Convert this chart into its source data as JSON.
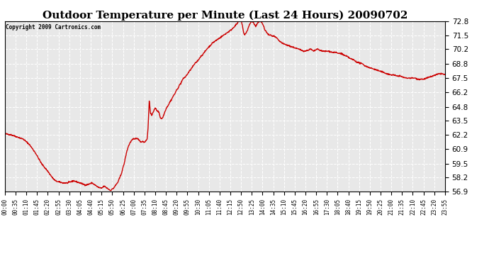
{
  "title": "Outdoor Temperature per Minute (Last 24 Hours) 20090702",
  "copyright_text": "Copyright 2009 Cartronics.com",
  "line_color": "#cc0000",
  "background_color": "#ffffff",
  "plot_bg_color": "#e8e8e8",
  "grid_color": "#ffffff",
  "ylim": [
    56.9,
    72.8
  ],
  "yticks": [
    56.9,
    58.2,
    59.5,
    60.9,
    62.2,
    63.5,
    64.8,
    66.2,
    67.5,
    68.8,
    70.2,
    71.5,
    72.8
  ],
  "xlabel_fontsize": 5.5,
  "ylabel_fontsize": 7.5,
  "title_fontsize": 11,
  "line_width": 1.0,
  "x_tick_labels": [
    "00:00",
    "00:35",
    "01:10",
    "01:45",
    "02:20",
    "02:55",
    "03:30",
    "04:05",
    "04:40",
    "05:15",
    "05:50",
    "06:25",
    "07:00",
    "07:35",
    "08:10",
    "08:45",
    "09:20",
    "09:55",
    "10:30",
    "11:05",
    "11:40",
    "12:15",
    "12:50",
    "13:25",
    "14:00",
    "14:35",
    "15:10",
    "15:45",
    "16:20",
    "16:55",
    "17:30",
    "18:05",
    "18:40",
    "19:15",
    "19:50",
    "20:25",
    "21:00",
    "21:35",
    "22:10",
    "22:45",
    "23:20",
    "23:55"
  ],
  "control_points": [
    [
      0,
      62.3
    ],
    [
      20,
      62.2
    ],
    [
      40,
      62.0
    ],
    [
      60,
      61.8
    ],
    [
      80,
      61.3
    ],
    [
      100,
      60.5
    ],
    [
      120,
      59.5
    ],
    [
      140,
      58.8
    ],
    [
      155,
      58.2
    ],
    [
      165,
      57.9
    ],
    [
      175,
      57.8
    ],
    [
      190,
      57.7
    ],
    [
      205,
      57.7
    ],
    [
      215,
      57.8
    ],
    [
      225,
      57.9
    ],
    [
      235,
      57.8
    ],
    [
      245,
      57.7
    ],
    [
      255,
      57.6
    ],
    [
      265,
      57.5
    ],
    [
      275,
      57.6
    ],
    [
      285,
      57.7
    ],
    [
      295,
      57.5
    ],
    [
      305,
      57.3
    ],
    [
      315,
      57.2
    ],
    [
      325,
      57.4
    ],
    [
      330,
      57.3
    ],
    [
      335,
      57.2
    ],
    [
      340,
      57.1
    ],
    [
      345,
      57.0
    ],
    [
      350,
      57.1
    ],
    [
      355,
      57.2
    ],
    [
      360,
      57.4
    ],
    [
      370,
      57.8
    ],
    [
      380,
      58.5
    ],
    [
      390,
      59.5
    ],
    [
      395,
      60.2
    ],
    [
      400,
      60.8
    ],
    [
      405,
      61.2
    ],
    [
      410,
      61.5
    ],
    [
      415,
      61.7
    ],
    [
      420,
      61.8
    ],
    [
      425,
      61.8
    ],
    [
      430,
      61.9
    ],
    [
      435,
      61.8
    ],
    [
      440,
      61.7
    ],
    [
      445,
      61.5
    ],
    [
      450,
      61.6
    ],
    [
      455,
      61.5
    ],
    [
      460,
      61.6
    ],
    [
      465,
      61.8
    ],
    [
      468,
      62.8
    ],
    [
      472,
      65.4
    ],
    [
      476,
      64.2
    ],
    [
      480,
      64.0
    ],
    [
      484,
      64.3
    ],
    [
      488,
      64.5
    ],
    [
      492,
      64.7
    ],
    [
      496,
      64.5
    ],
    [
      500,
      64.4
    ],
    [
      504,
      64.3
    ],
    [
      508,
      63.8
    ],
    [
      512,
      63.7
    ],
    [
      516,
      63.8
    ],
    [
      520,
      64.1
    ],
    [
      525,
      64.5
    ],
    [
      530,
      64.8
    ],
    [
      535,
      65.0
    ],
    [
      540,
      65.3
    ],
    [
      545,
      65.5
    ],
    [
      550,
      65.8
    ],
    [
      555,
      66.0
    ],
    [
      560,
      66.3
    ],
    [
      565,
      66.5
    ],
    [
      570,
      66.8
    ],
    [
      575,
      67.0
    ],
    [
      580,
      67.3
    ],
    [
      585,
      67.5
    ],
    [
      590,
      67.6
    ],
    [
      595,
      67.8
    ],
    [
      600,
      68.0
    ],
    [
      610,
      68.4
    ],
    [
      620,
      68.8
    ],
    [
      630,
      69.1
    ],
    [
      640,
      69.5
    ],
    [
      650,
      69.8
    ],
    [
      660,
      70.2
    ],
    [
      670,
      70.5
    ],
    [
      680,
      70.8
    ],
    [
      690,
      71.0
    ],
    [
      700,
      71.2
    ],
    [
      710,
      71.4
    ],
    [
      720,
      71.6
    ],
    [
      730,
      71.8
    ],
    [
      740,
      72.0
    ],
    [
      750,
      72.3
    ],
    [
      760,
      72.6
    ],
    [
      768,
      73.0
    ],
    [
      772,
      72.9
    ],
    [
      776,
      72.5
    ],
    [
      780,
      71.8
    ],
    [
      784,
      71.5
    ],
    [
      788,
      71.7
    ],
    [
      792,
      71.9
    ],
    [
      796,
      72.2
    ],
    [
      800,
      72.5
    ],
    [
      804,
      72.7
    ],
    [
      808,
      72.8
    ],
    [
      812,
      72.7
    ],
    [
      816,
      72.5
    ],
    [
      820,
      72.3
    ],
    [
      824,
      72.5
    ],
    [
      828,
      72.7
    ],
    [
      832,
      72.8
    ],
    [
      836,
      72.8
    ],
    [
      840,
      72.7
    ],
    [
      845,
      72.4
    ],
    [
      850,
      72.0
    ],
    [
      855,
      71.8
    ],
    [
      860,
      71.6
    ],
    [
      865,
      71.5
    ],
    [
      870,
      71.5
    ],
    [
      875,
      71.4
    ],
    [
      880,
      71.4
    ],
    [
      885,
      71.3
    ],
    [
      890,
      71.2
    ],
    [
      895,
      71.0
    ],
    [
      900,
      70.9
    ],
    [
      910,
      70.7
    ],
    [
      920,
      70.6
    ],
    [
      930,
      70.5
    ],
    [
      940,
      70.4
    ],
    [
      950,
      70.3
    ],
    [
      960,
      70.2
    ],
    [
      970,
      70.1
    ],
    [
      980,
      70.0
    ],
    [
      990,
      70.1
    ],
    [
      1000,
      70.2
    ],
    [
      1005,
      70.1
    ],
    [
      1010,
      70.0
    ],
    [
      1015,
      70.1
    ],
    [
      1020,
      70.2
    ],
    [
      1030,
      70.1
    ],
    [
      1040,
      70.0
    ],
    [
      1050,
      70.0
    ],
    [
      1060,
      70.0
    ],
    [
      1070,
      69.9
    ],
    [
      1080,
      69.9
    ],
    [
      1090,
      69.8
    ],
    [
      1100,
      69.8
    ],
    [
      1110,
      69.6
    ],
    [
      1120,
      69.5
    ],
    [
      1130,
      69.3
    ],
    [
      1140,
      69.2
    ],
    [
      1150,
      69.0
    ],
    [
      1160,
      68.9
    ],
    [
      1170,
      68.8
    ],
    [
      1180,
      68.6
    ],
    [
      1190,
      68.5
    ],
    [
      1200,
      68.4
    ],
    [
      1210,
      68.3
    ],
    [
      1220,
      68.2
    ],
    [
      1230,
      68.1
    ],
    [
      1240,
      68.0
    ],
    [
      1250,
      67.9
    ],
    [
      1260,
      67.8
    ],
    [
      1270,
      67.8
    ],
    [
      1280,
      67.7
    ],
    [
      1290,
      67.7
    ],
    [
      1300,
      67.6
    ],
    [
      1310,
      67.5
    ],
    [
      1320,
      67.5
    ],
    [
      1330,
      67.5
    ],
    [
      1340,
      67.5
    ],
    [
      1350,
      67.4
    ],
    [
      1360,
      67.4
    ],
    [
      1370,
      67.4
    ],
    [
      1380,
      67.5
    ],
    [
      1390,
      67.6
    ],
    [
      1400,
      67.7
    ],
    [
      1410,
      67.8
    ],
    [
      1420,
      67.9
    ],
    [
      1430,
      67.9
    ],
    [
      1439,
      67.8
    ]
  ]
}
